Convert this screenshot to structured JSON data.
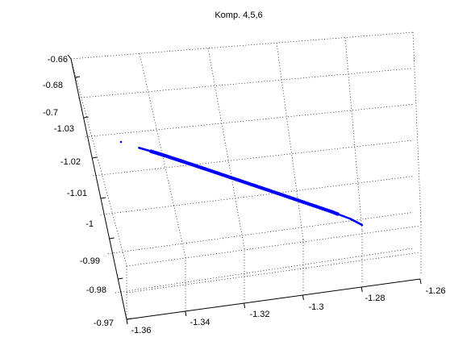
{
  "chart_data": {
    "type": "scatter",
    "title": "Komp. 4,5,6",
    "xlabel": "",
    "ylabel": "",
    "zlabel": "",
    "grid": true,
    "x_ticks": [
      "-1.36",
      "-1.34",
      "-1.32",
      "-1.3",
      "-1.28",
      "-1.26"
    ],
    "y_ticks": [
      "-0.97",
      "-0.98",
      "-0.99",
      "-1",
      "-1.01",
      "-1.02",
      "-1.03"
    ],
    "z_ticks": [
      "-0.7",
      "-0.68",
      "-0.66"
    ],
    "series": [
      {
        "color": "#0000ff",
        "note_shape": "dense points forming a straight line",
        "points": [
          {
            "u": 0.0,
            "v": 0.0
          },
          {
            "u": 0.075,
            "v": 0.065
          },
          {
            "u": 0.12,
            "v": 0.1
          },
          {
            "u": 0.18,
            "v": 0.15
          },
          {
            "u": 0.26,
            "v": 0.22
          },
          {
            "u": 0.35,
            "v": 0.3
          },
          {
            "u": 0.45,
            "v": 0.39
          },
          {
            "u": 0.55,
            "v": 0.48
          },
          {
            "u": 0.65,
            "v": 0.57
          },
          {
            "u": 0.76,
            "v": 0.67
          },
          {
            "u": 0.87,
            "v": 0.77
          },
          {
            "u": 0.95,
            "v": 0.85
          },
          {
            "u": 1.0,
            "v": 0.92
          }
        ]
      }
    ]
  }
}
